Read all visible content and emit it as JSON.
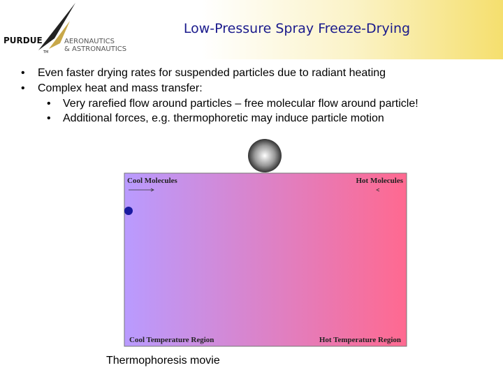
{
  "header": {
    "title": "Low-Pressure Spray Freeze-Drying",
    "logo": {
      "name": "PURDUE",
      "trademark": "TM",
      "line1": "AERONAUTICS",
      "line2": "& ASTRONAUTICS"
    }
  },
  "bullets": [
    {
      "text": "Even faster drying rates for suspended particles due to radiant heating",
      "sub": []
    },
    {
      "text": "Complex heat and mass transfer:",
      "sub": [
        "Very rarefied flow around particles – free molecular flow around particle!",
        "Additional forces, e.g. thermophoretic may induce particle motion"
      ]
    }
  ],
  "figure": {
    "top_left": "Cool Molecules",
    "top_right": "Hot Molecules",
    "bottom_left": "Cool Temperature Region",
    "bottom_right": "Hot Temperature Region",
    "caption": "Thermophoresis movie"
  }
}
